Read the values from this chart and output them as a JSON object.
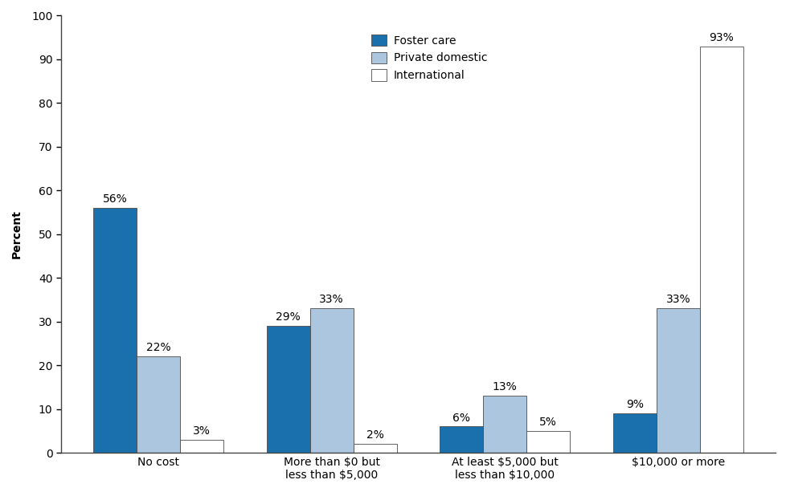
{
  "categories": [
    "No cost",
    "More than $0 but\nless than $5,000",
    "At least $5,000 but\nless than $10,000",
    "$10,000 or more"
  ],
  "foster_care": [
    56,
    29,
    6,
    9
  ],
  "private_domestic": [
    22,
    33,
    13,
    33
  ],
  "international": [
    3,
    2,
    5,
    93
  ],
  "foster_care_color": "#1a6fad",
  "private_domestic_color": "#adc6e0",
  "international_color": "#ffffff",
  "bar_edge_color": "#4a4a4a",
  "ylabel": "Percent",
  "ylim": [
    0,
    100
  ],
  "yticks": [
    0,
    10,
    20,
    30,
    40,
    50,
    60,
    70,
    80,
    90,
    100
  ],
  "legend_labels": [
    "Foster care",
    "Private domestic",
    "International"
  ],
  "bar_width": 0.25,
  "label_fontsize": 10,
  "axis_fontsize": 10,
  "legend_fontsize": 10,
  "background_color": "#ffffff"
}
